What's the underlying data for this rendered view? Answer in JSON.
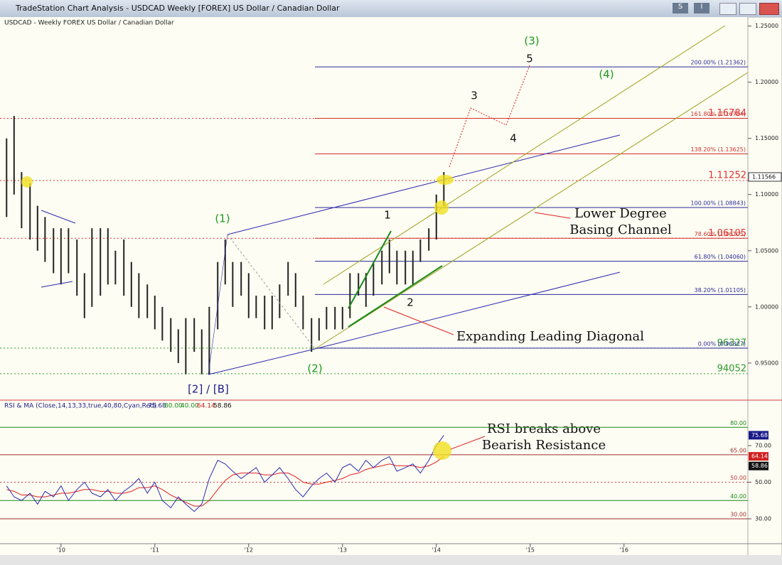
{
  "window": {
    "title": "TradeStation Chart Analysis - USDCAD Weekly [FOREX] US Dollar / Canadian Dollar",
    "menu_buttons": [
      "S",
      "I"
    ]
  },
  "price_panel": {
    "header": "USDCAD - Weekly  FOREX  US Dollar / Canadian Dollar",
    "ylim": [
      0.917,
      1.258
    ],
    "yticks": [
      {
        "value": 0.95,
        "label": "0.95000"
      },
      {
        "value": 1.0,
        "label": "1.00000"
      },
      {
        "value": 1.05,
        "label": "1.05000"
      },
      {
        "value": 1.1,
        "label": "1.10000"
      },
      {
        "value": 1.15,
        "label": "1.15000"
      },
      {
        "value": 1.2,
        "label": "1.20000"
      },
      {
        "value": 1.25,
        "label": "1.25000"
      }
    ],
    "last_price": {
      "value": 1.11566,
      "label": "1.11566"
    },
    "x": [
      2009.42,
      2009.5,
      2009.58,
      2009.67,
      2009.75,
      2009.83,
      2009.92,
      2010,
      2010.08,
      2010.17,
      2010.25,
      2010.33,
      2010.42,
      2010.5,
      2010.58,
      2010.67,
      2010.75,
      2010.83,
      2010.92,
      2011,
      2011.08,
      2011.17,
      2011.25,
      2011.33,
      2011.42,
      2011.5,
      2011.58,
      2011.67,
      2011.75,
      2011.83,
      2011.92,
      2012,
      2012.08,
      2012.17,
      2012.25,
      2012.33,
      2012.42,
      2012.5,
      2012.58,
      2012.67,
      2012.75,
      2012.83,
      2012.92,
      2013,
      2013.08,
      2013.17,
      2013.25,
      2013.33,
      2013.42,
      2013.5,
      2013.58,
      2013.67,
      2013.75,
      2013.83,
      2013.92,
      2014,
      2014.08
    ],
    "high": [
      1.15,
      1.17,
      1.12,
      1.11,
      1.09,
      1.08,
      1.07,
      1.07,
      1.07,
      1.06,
      1.03,
      1.07,
      1.07,
      1.07,
      1.05,
      1.06,
      1.04,
      1.03,
      1.02,
      1.01,
      1.0,
      0.99,
      0.98,
      0.99,
      0.99,
      0.98,
      1.0,
      1.04,
      1.06,
      1.04,
      1.04,
      1.03,
      1.01,
      1.01,
      1.01,
      1.02,
      1.04,
      1.03,
      1.01,
      0.99,
      0.99,
      1.0,
      1.0,
      1.0,
      1.03,
      1.03,
      1.03,
      1.04,
      1.05,
      1.06,
      1.05,
      1.05,
      1.05,
      1.06,
      1.07,
      1.1,
      1.12
    ],
    "low": [
      1.08,
      1.1,
      1.07,
      1.06,
      1.05,
      1.04,
      1.03,
      1.02,
      1.03,
      1.01,
      0.99,
      1.0,
      1.01,
      1.02,
      1.02,
      1.01,
      1.0,
      0.99,
      0.99,
      0.98,
      0.97,
      0.96,
      0.95,
      0.94,
      0.96,
      0.94,
      0.94,
      0.98,
      1.02,
      1.0,
      1.01,
      0.99,
      0.99,
      0.98,
      0.98,
      0.99,
      1.01,
      1.0,
      0.98,
      0.96,
      0.97,
      0.98,
      0.98,
      0.98,
      0.99,
      1.01,
      1.0,
      1.01,
      1.02,
      1.03,
      1.02,
      1.02,
      1.02,
      1.04,
      1.05,
      1.06,
      1.09
    ],
    "bar_color": "#222222",
    "levels": [
      {
        "value": 1.16784,
        "label": "1.16784",
        "color": "#e03030"
      },
      {
        "value": 1.11252,
        "label": "1.11252",
        "color": "#e03030"
      },
      {
        "value": 1.06105,
        "label": "1.06105",
        "color": "#e03030"
      },
      {
        "value": 0.96327,
        "label": "96327",
        "color": "#2e9a2e"
      },
      {
        "value": 0.94052,
        "label": "94052",
        "color": "#2e9a2e"
      }
    ],
    "fib_levels": [
      {
        "value": 1.21362,
        "label": "200.00% (1.21362)",
        "color": "#2a2a9a"
      },
      {
        "value": 1.16784,
        "label": "161.80% (1.16784)",
        "color": "#d03030"
      },
      {
        "value": 1.13625,
        "label": "138.20% (1.13625)",
        "color": "#d03030"
      },
      {
        "value": 1.08843,
        "label": "100.00% (1.08843)",
        "color": "#2a2a9a"
      },
      {
        "value": 1.06105,
        "label": "78.60% (1.06105)",
        "color": "#d03030"
      },
      {
        "value": 1.0406,
        "label": "61.80% (1.04060)",
        "color": "#2a2a9a"
      },
      {
        "value": 1.01105,
        "label": "38.20% (1.01105)",
        "color": "#2a2a9a"
      },
      {
        "value": 0.96327,
        "label": "0.00% (0.96327)",
        "color": "#2a2a9a"
      }
    ],
    "wave_labels": [
      {
        "text": "(3)",
        "color": "#1a9a1a"
      },
      {
        "text": "5",
        "color": "#111111"
      },
      {
        "text": "(4)",
        "color": "#1a9a1a"
      },
      {
        "text": "3",
        "color": "#111111"
      },
      {
        "text": "4",
        "color": "#111111"
      },
      {
        "text": "(1)",
        "color": "#1a9a1a"
      },
      {
        "text": "1",
        "color": "#111111"
      },
      {
        "text": "2",
        "color": "#111111"
      },
      {
        "text": "(2)",
        "color": "#1a9a1a"
      },
      {
        "text": "[2] / [B]",
        "color": "#1a1a8a"
      }
    ],
    "callouts": [
      [
        "Lower Degree",
        "Basing Channel"
      ],
      [
        "Expanding Leading Diagonal"
      ],
      [
        "RSI breaks above",
        "Bearish Resistance"
      ]
    ]
  },
  "rsi_panel": {
    "header": "RSI & MA (Close,14,13,33,true,40,80,Cyan,Red)",
    "readouts": [
      "75.68",
      "80.00",
      "40.00",
      "64.14",
      "58.86"
    ],
    "ylim": [
      16.4,
      94.1
    ],
    "yticks": [
      {
        "value": 30,
        "label": "30.00"
      },
      {
        "value": 50,
        "label": "50.00"
      },
      {
        "value": 70,
        "label": "70.00"
      }
    ],
    "levels": [
      {
        "value": 80,
        "label": "80.00",
        "color": "#1a8a1a"
      },
      {
        "value": 65,
        "label": "65.00",
        "color": "#a03030"
      },
      {
        "value": 50,
        "label": "50.00",
        "color": "#c04040"
      },
      {
        "value": 40,
        "label": "40.00",
        "color": "#1a8a1a"
      },
      {
        "value": 30,
        "label": "30.00",
        "color": "#a03030"
      }
    ],
    "rsi": [
      48,
      42,
      40,
      44,
      38,
      45,
      42,
      48,
      40,
      46,
      50,
      44,
      42,
      46,
      40,
      45,
      48,
      52,
      44,
      50,
      40,
      36,
      42,
      38,
      34,
      38,
      52,
      62,
      60,
      56,
      52,
      55,
      58,
      50,
      54,
      58,
      52,
      46,
      42,
      48,
      52,
      55,
      50,
      58,
      60,
      56,
      62,
      58,
      62,
      64,
      56,
      58,
      60,
      55,
      62,
      70,
      75.68
    ],
    "ma": [
      46,
      45,
      43,
      43,
      42,
      42,
      43,
      44,
      44,
      45,
      46,
      46,
      45,
      45,
      44,
      44,
      45,
      47,
      47,
      48,
      46,
      43,
      41,
      39,
      37,
      37,
      40,
      46,
      51,
      54,
      55,
      55,
      55,
      54,
      54,
      55,
      55,
      53,
      50,
      49,
      49,
      50,
      51,
      52,
      54,
      55,
      57,
      58,
      59,
      60,
      59,
      59,
      59,
      58,
      59,
      61,
      64.14
    ],
    "rsi_color": "#2a2ab0",
    "ma_color": "#e02020",
    "badges": [
      {
        "value": 75.68,
        "label": "75.68",
        "color": "#1a1a8a"
      },
      {
        "value": 64.14,
        "label": "64.14",
        "color": "#d02020"
      },
      {
        "value": 58.86,
        "label": "58.86",
        "color": "#111111"
      }
    ]
  },
  "x_axis": {
    "xlim": [
      2009.35,
      2017.32
    ],
    "xticks": [
      {
        "value": 2010,
        "label": "'10"
      },
      {
        "value": 2011,
        "label": "'11"
      },
      {
        "value": 2012,
        "label": "'12"
      },
      {
        "value": 2013,
        "label": "'13"
      },
      {
        "value": 2014,
        "label": "'14"
      },
      {
        "value": 2015,
        "label": "'15"
      },
      {
        "value": 2016,
        "label": "'16"
      }
    ]
  }
}
